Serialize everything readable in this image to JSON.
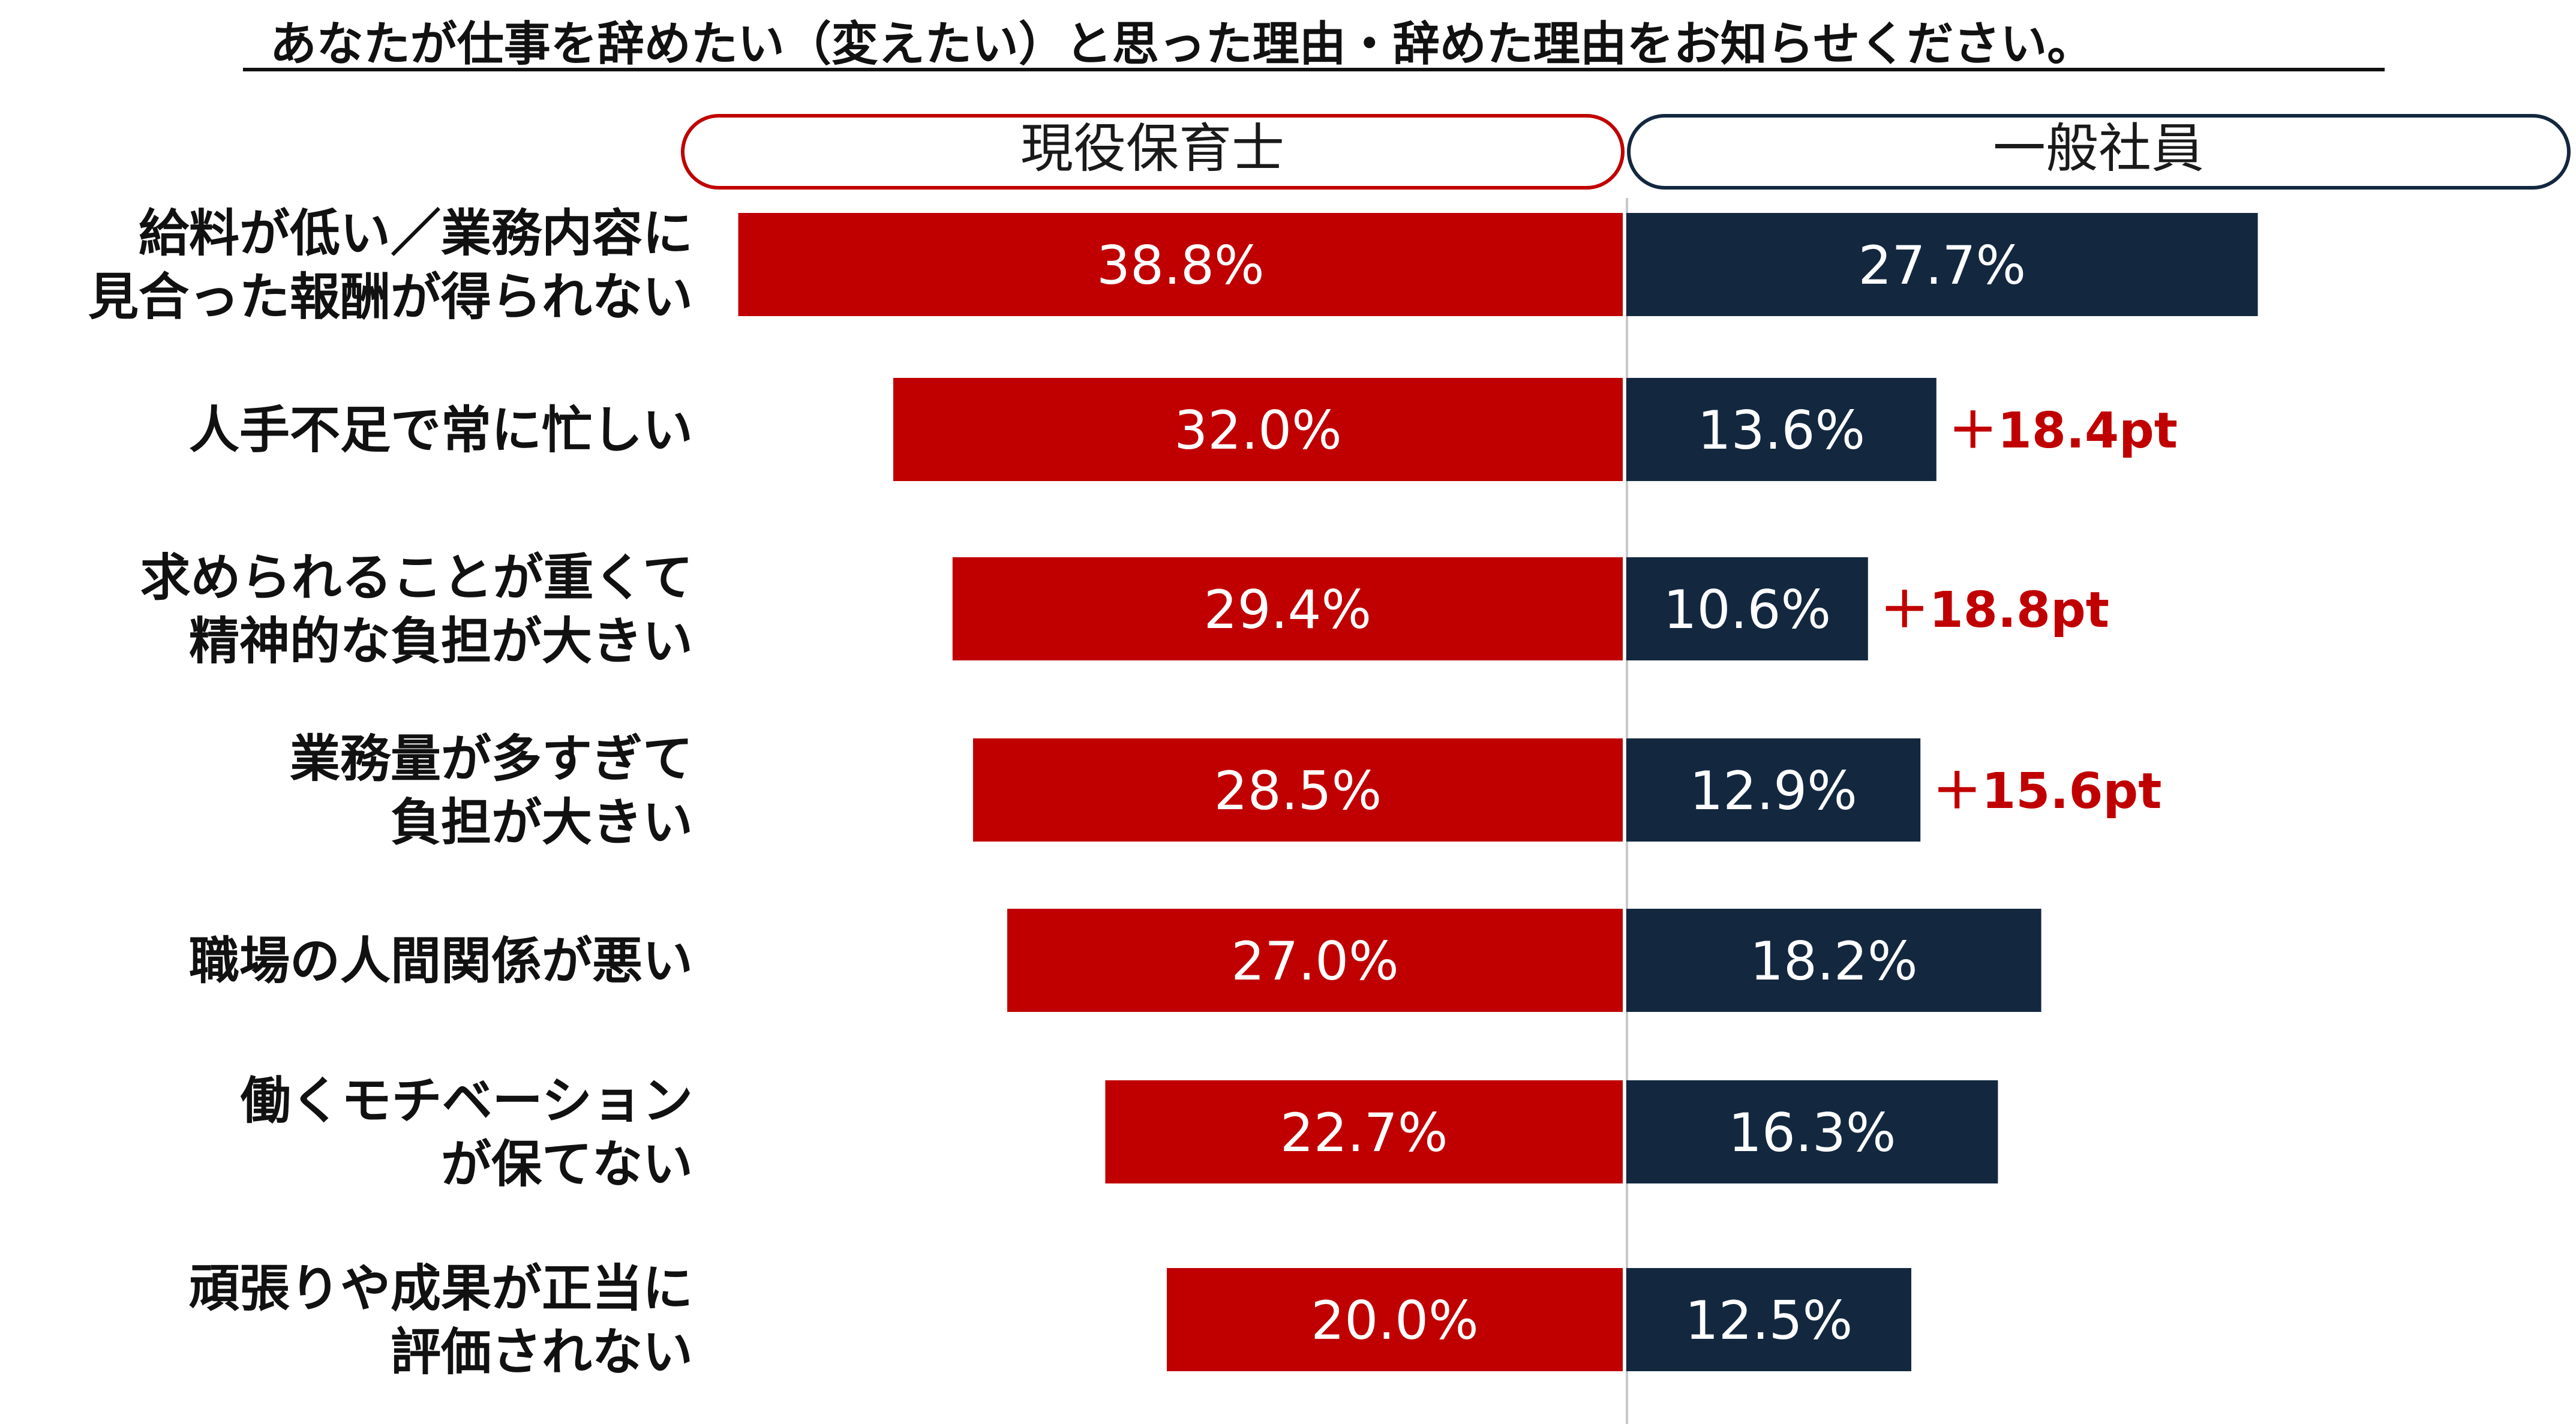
{
  "chart_data": {
    "type": "bar",
    "title": "あなたが仕事を辞めたい（変えたい）と思った理由・辞めた理由をお知らせください。",
    "series": [
      {
        "name": "現役保育士",
        "color": "#c00000",
        "values": [
          38.8,
          32.0,
          29.4,
          28.5,
          27.0,
          22.7,
          20.0
        ],
        "labels": [
          "38.8%",
          "32.0%",
          "29.4%",
          "28.5%",
          "27.0%",
          "22.7%",
          "20.0%"
        ]
      },
      {
        "name": "一般社員",
        "color": "#13283f",
        "values": [
          27.7,
          13.6,
          10.6,
          12.9,
          18.2,
          16.3,
          12.5
        ],
        "labels": [
          "27.7%",
          "13.6%",
          "10.6%",
          "12.9%",
          "18.2%",
          "16.3%",
          "12.5%"
        ]
      }
    ],
    "categories": [
      [
        "給料が低い／業務内容に",
        "見合った報酬が得られない"
      ],
      [
        "人手不足で常に忙しい"
      ],
      [
        "求められることが重くて",
        "精神的な負担が大きい"
      ],
      [
        "業務量が多すぎて",
        "負担が大きい"
      ],
      [
        "職場の人間関係が悪い"
      ],
      [
        "働くモチベーション",
        "が保てない"
      ],
      [
        "頑張りや成果が正当に",
        "評価されない"
      ]
    ],
    "differences": [
      "",
      "＋18.4pt",
      "＋18.8pt",
      "＋15.6pt",
      "",
      "",
      ""
    ],
    "difference_color": "#c00000",
    "xlim": [
      0,
      40
    ]
  }
}
